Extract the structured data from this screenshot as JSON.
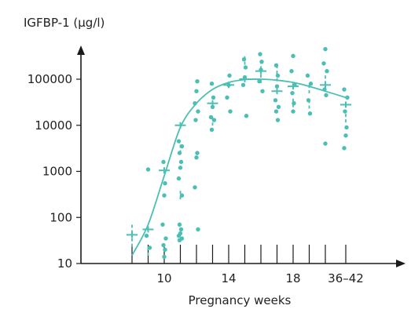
{
  "chart_data": {
    "type": "scatter",
    "title": "",
    "ylabel": "IGFBP-1 (µg/l)",
    "xlabel": "Pregnancy weeks",
    "y_scale": "log",
    "ylim": [
      10,
      300000
    ],
    "y_ticks": [
      {
        "value": 10,
        "label": "10"
      },
      {
        "value": 100,
        "label": "100"
      },
      {
        "value": 1000,
        "label": "1000"
      },
      {
        "value": 10000,
        "label": "10000"
      },
      {
        "value": 100000,
        "label": "100000"
      }
    ],
    "x_categories": [
      "8",
      "9",
      "10",
      "11",
      "12",
      "13",
      "14",
      "15",
      "16",
      "17",
      "18",
      "19",
      "20",
      "36–42"
    ],
    "x_tick_labels": [
      {
        "category": "10",
        "label": "10"
      },
      {
        "category": "14",
        "label": "14"
      },
      {
        "category": "18",
        "label": "18"
      },
      {
        "category": "36–42",
        "label": "36–42"
      }
    ],
    "grid": false,
    "colors": {
      "data": "#4bbfb4",
      "axis": "#1a1a1a"
    },
    "points": [
      {
        "x": "9",
        "y": 1100
      },
      {
        "x": "9",
        "y": 40
      },
      {
        "x": "9",
        "y": 22
      },
      {
        "x": "10",
        "y": 1600
      },
      {
        "x": "10",
        "y": 550
      },
      {
        "x": "10",
        "y": 300
      },
      {
        "x": "10",
        "y": 70
      },
      {
        "x": "10",
        "y": 35
      },
      {
        "x": "10",
        "y": 25
      },
      {
        "x": "10",
        "y": 20
      },
      {
        "x": "10",
        "y": 14
      },
      {
        "x": "11",
        "y": 4500
      },
      {
        "x": "11",
        "y": 3500
      },
      {
        "x": "11",
        "y": 2500
      },
      {
        "x": "11",
        "y": 1600
      },
      {
        "x": "11",
        "y": 1200
      },
      {
        "x": "11",
        "y": 700
      },
      {
        "x": "11",
        "y": 300
      },
      {
        "x": "11",
        "y": 70
      },
      {
        "x": "11",
        "y": 55
      },
      {
        "x": "11",
        "y": 45
      },
      {
        "x": "11",
        "y": 40
      },
      {
        "x": "11",
        "y": 35
      },
      {
        "x": "11",
        "y": 32
      },
      {
        "x": "12",
        "y": 90000
      },
      {
        "x": "12",
        "y": 55000
      },
      {
        "x": "12",
        "y": 30000
      },
      {
        "x": "12",
        "y": 20000
      },
      {
        "x": "12",
        "y": 13000
      },
      {
        "x": "12",
        "y": 2500
      },
      {
        "x": "12",
        "y": 2000
      },
      {
        "x": "12",
        "y": 450
      },
      {
        "x": "12",
        "y": 55
      },
      {
        "x": "13",
        "y": 80000
      },
      {
        "x": "13",
        "y": 40000
      },
      {
        "x": "13",
        "y": 25000
      },
      {
        "x": "13",
        "y": 15000
      },
      {
        "x": "13",
        "y": 13000
      },
      {
        "x": "13",
        "y": 8000
      },
      {
        "x": "14",
        "y": 120000
      },
      {
        "x": "14",
        "y": 75000
      },
      {
        "x": "14",
        "y": 40000
      },
      {
        "x": "14",
        "y": 20000
      },
      {
        "x": "15",
        "y": 270000
      },
      {
        "x": "15",
        "y": 180000
      },
      {
        "x": "15",
        "y": 110000
      },
      {
        "x": "15",
        "y": 75000
      },
      {
        "x": "15",
        "y": 16000
      },
      {
        "x": "16",
        "y": 350000
      },
      {
        "x": "16",
        "y": 240000
      },
      {
        "x": "16",
        "y": 160000
      },
      {
        "x": "16",
        "y": 90000
      },
      {
        "x": "16",
        "y": 55000
      },
      {
        "x": "17",
        "y": 200000
      },
      {
        "x": "17",
        "y": 120000
      },
      {
        "x": "17",
        "y": 70000
      },
      {
        "x": "17",
        "y": 35000
      },
      {
        "x": "17",
        "y": 25000
      },
      {
        "x": "17",
        "y": 20000
      },
      {
        "x": "17",
        "y": 13000
      },
      {
        "x": "18",
        "y": 320000
      },
      {
        "x": "18",
        "y": 150000
      },
      {
        "x": "18",
        "y": 75000
      },
      {
        "x": "18",
        "y": 50000
      },
      {
        "x": "18",
        "y": 30000
      },
      {
        "x": "18",
        "y": 20000
      },
      {
        "x": "19",
        "y": 120000
      },
      {
        "x": "19",
        "y": 80000
      },
      {
        "x": "19",
        "y": 35000
      },
      {
        "x": "19",
        "y": 18000
      },
      {
        "x": "20",
        "y": 450000
      },
      {
        "x": "20",
        "y": 220000
      },
      {
        "x": "20",
        "y": 150000
      },
      {
        "x": "20",
        "y": 60000
      },
      {
        "x": "20",
        "y": 45000
      },
      {
        "x": "20",
        "y": 4000
      },
      {
        "x": "36–42",
        "y": 60000
      },
      {
        "x": "36–42",
        "y": 40000
      },
      {
        "x": "36–42",
        "y": 20000
      },
      {
        "x": "36–42",
        "y": 9000
      },
      {
        "x": "36–42",
        "y": 6000
      },
      {
        "x": "36–42",
        "y": 3200
      }
    ],
    "medians": [
      {
        "x": "8",
        "y": 42
      },
      {
        "x": "9",
        "y": 55
      },
      {
        "x": "10",
        "y": 1050
      },
      {
        "x": "11",
        "y": 10000
      },
      {
        "x": "13",
        "y": 30000
      },
      {
        "x": "14",
        "y": 75000
      },
      {
        "x": "15",
        "y": 100000
      },
      {
        "x": "16",
        "y": 150000
      },
      {
        "x": "17",
        "y": 55000
      },
      {
        "x": "18",
        "y": 70000
      },
      {
        "x": "20",
        "y": 75000
      },
      {
        "x": "36–42",
        "y": 28000
      }
    ],
    "dashed_markers": [
      {
        "x": "8",
        "y": 55
      },
      {
        "x": "8",
        "y": 28
      },
      {
        "x": "9",
        "y": 18
      },
      {
        "x": "11",
        "y": 3000
      },
      {
        "x": "11",
        "y": 300
      },
      {
        "x": "13",
        "y": 12000
      },
      {
        "x": "15",
        "y": 250000
      },
      {
        "x": "16",
        "y": 200000
      },
      {
        "x": "16",
        "y": 100000
      },
      {
        "x": "17",
        "y": 160000
      },
      {
        "x": "17",
        "y": 110000
      },
      {
        "x": "18",
        "y": 30000
      },
      {
        "x": "19",
        "y": 60000
      },
      {
        "x": "19",
        "y": 28000
      },
      {
        "x": "20",
        "y": 95000
      },
      {
        "x": "36–42",
        "y": 14000
      }
    ],
    "fit_curve": {
      "type": "smoothed",
      "points": [
        {
          "x": "8",
          "y": 15
        },
        {
          "x": "9",
          "y": 70
        },
        {
          "x": "10",
          "y": 800
        },
        {
          "x": "11",
          "y": 9000
        },
        {
          "x": "12",
          "y": 30000
        },
        {
          "x": "13",
          "y": 60000
        },
        {
          "x": "14",
          "y": 85000
        },
        {
          "x": "15",
          "y": 98000
        },
        {
          "x": "16",
          "y": 100000
        },
        {
          "x": "17",
          "y": 95000
        },
        {
          "x": "18",
          "y": 85000
        },
        {
          "x": "19",
          "y": 70000
        },
        {
          "x": "20",
          "y": 55000
        },
        {
          "x": "36–42",
          "y": 40000
        }
      ]
    }
  }
}
